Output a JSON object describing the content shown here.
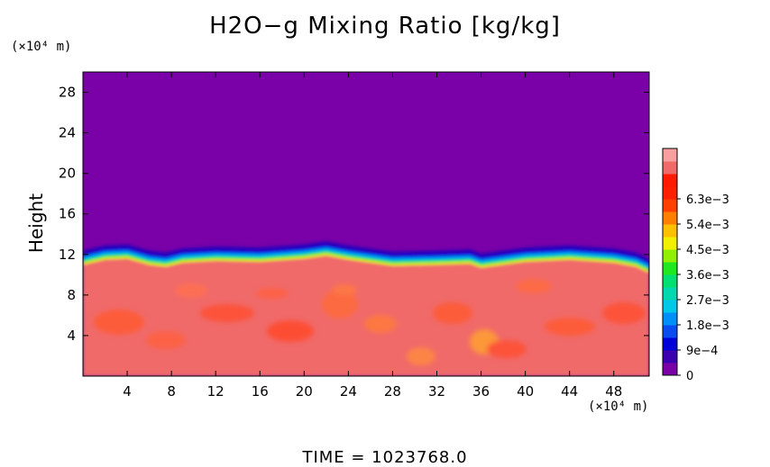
{
  "chart_data": {
    "type": "heatmap",
    "title": "H2O−g Mixing Ratio [kg/kg]",
    "ylabel": "Height",
    "y_unit": "(×10⁴ m)",
    "x_unit": "(×10⁴ m)",
    "x_ticks": [
      "4",
      "8",
      "12",
      "16",
      "20",
      "24",
      "28",
      "32",
      "36",
      "40",
      "44",
      "48"
    ],
    "y_ticks": [
      "4",
      "8",
      "12",
      "16",
      "20",
      "24",
      "28"
    ],
    "xlim": [
      0,
      51.2
    ],
    "ylim": [
      0,
      30
    ],
    "colorbar": {
      "labels": [
        "0",
        "9e−4",
        "1.8e−3",
        "2.7e−3",
        "3.6e−3",
        "4.5e−3",
        "5.4e−3",
        "6.3e−3"
      ],
      "range": [
        0,
        0.0072
      ],
      "colors": [
        "#7a00a8",
        "#3c00b0",
        "#0000d8",
        "#0a4cf0",
        "#0090f8",
        "#00c8e8",
        "#00d8b0",
        "#00e070",
        "#20e820",
        "#90f000",
        "#f0f000",
        "#ffc000",
        "#ff8000",
        "#ff4000",
        "#ff2000",
        "#ff1a00",
        "#f06a6a",
        "#f8a0a0"
      ]
    },
    "background_value": 0,
    "moist_layer_value": 0.0066,
    "moist_layer_top_profile": [
      {
        "x": 0,
        "y": 11.0
      },
      {
        "x": 2,
        "y": 11.5
      },
      {
        "x": 4,
        "y": 11.6
      },
      {
        "x": 6,
        "y": 11.0
      },
      {
        "x": 7.5,
        "y": 10.8
      },
      {
        "x": 9,
        "y": 11.2
      },
      {
        "x": 12,
        "y": 11.4
      },
      {
        "x": 16,
        "y": 11.3
      },
      {
        "x": 20,
        "y": 11.6
      },
      {
        "x": 22,
        "y": 11.9
      },
      {
        "x": 24,
        "y": 11.5
      },
      {
        "x": 28,
        "y": 10.9
      },
      {
        "x": 32,
        "y": 11.0
      },
      {
        "x": 35,
        "y": 11.1
      },
      {
        "x": 36,
        "y": 10.7
      },
      {
        "x": 40,
        "y": 11.3
      },
      {
        "x": 44,
        "y": 11.5
      },
      {
        "x": 48,
        "y": 11.2
      },
      {
        "x": 50,
        "y": 10.8
      },
      {
        "x": 51.2,
        "y": 10.2
      }
    ],
    "time_label": "TIME  =  1023768.0"
  }
}
